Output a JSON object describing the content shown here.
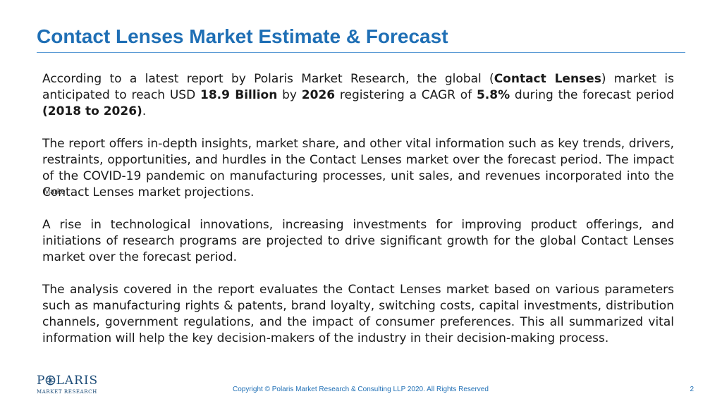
{
  "slide": {
    "title": "Contact Lenses Market Estimate & Forecast",
    "page_number": "2"
  },
  "body": {
    "p1": {
      "t1": "According to a latest report by Polaris Market Research, the global (",
      "b1": "Contact Lenses",
      "t2": ") market is anticipated to reach USD ",
      "b2": "18.9 Billion",
      "t3": " by ",
      "b3": "2026",
      "t4": "  registering a CAGR of ",
      "b4": "5.8%",
      "t5": " during the  forecast period ",
      "b5": "(2018 to 2026)",
      "t6": "."
    },
    "p2": {
      "t1": "The report offers in-depth insights, market share, and other vital information such as key trends, drivers, restraints, opportunities, and hurdles in the Contact Lenses market over the forecast period. The impact of the COVID-19 pandemic on manufacturing processes, unit sales, and revenues incorporated into the ",
      "overlap_under": "Conta",
      "overlap_over": "Marke",
      "t2": "ct Lenses market projections."
    },
    "p3": "A rise in technological innovations, increasing investments for improving product offerings, and initiations of research programs are projected to drive significant growth for the global Contact Lenses market over the forecast period.",
    "p4": "The analysis covered in the report evaluates the Contact Lenses market based on various parameters such as manufacturing rights & patents, brand loyalty, switching costs,  capital investments, distribution channels, government regulations, and the impact of consumer preferences. This all summarized vital information will help the key decision-makers of the industry in their decision-making process."
  },
  "logo": {
    "letter_p": "P",
    "letters_rest": "LARIS",
    "subtitle": "MARKET RESEARCH",
    "icon": "globe-o-icon",
    "color": "#1f4e79"
  },
  "footer": {
    "copyright": "Copyright © Polaris Market Research & Consulting LLP 2020. All Rights Reserved"
  },
  "colors": {
    "title": "#1f6fb5",
    "rule": "#5b9bd5",
    "text": "#1a1a1a"
  }
}
